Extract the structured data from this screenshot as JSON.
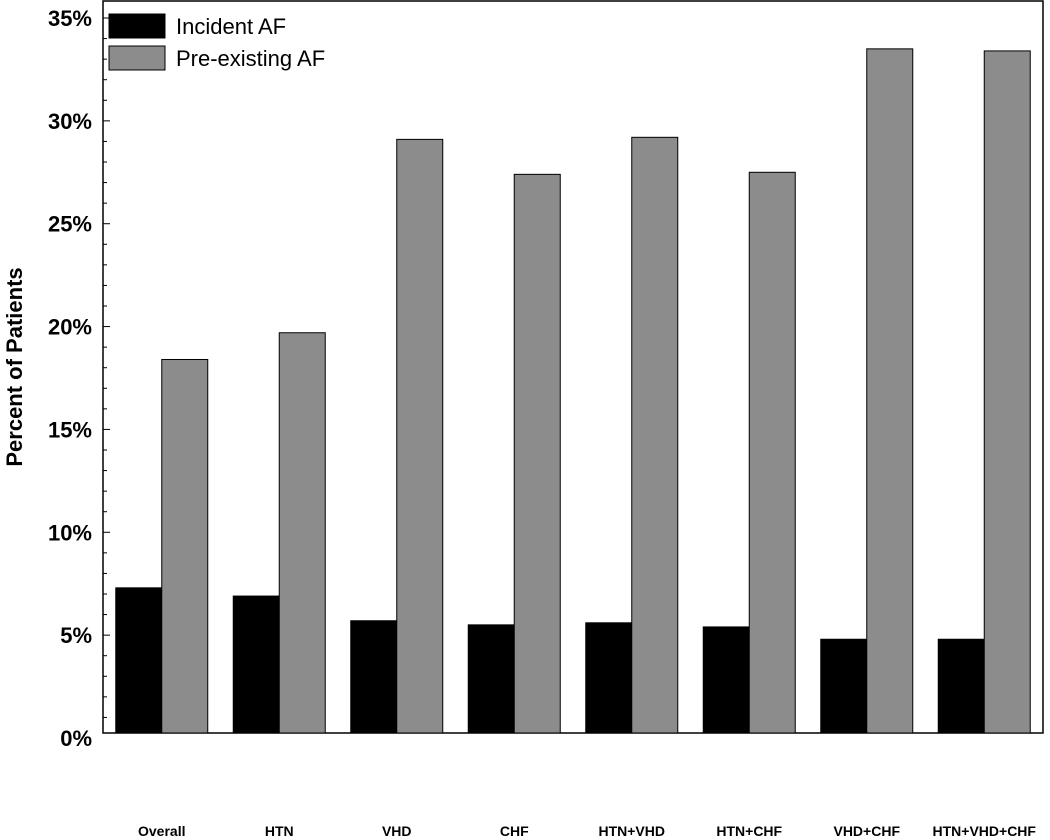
{
  "chart_data": {
    "type": "bar",
    "title": "",
    "xlabel": "",
    "ylabel": "Percent of Patients",
    "ylim": [
      0,
      35
    ],
    "y_ticks": [
      "0%",
      "5%",
      "10%",
      "15%",
      "20%",
      "25%",
      "30%",
      "35%"
    ],
    "y_tick_values": [
      0,
      5,
      10,
      15,
      20,
      25,
      30,
      35
    ],
    "categories": [
      "Overall",
      "HTN",
      "VHD",
      "CHF",
      "HTN+VHD",
      "HTN+CHF",
      "VHD+CHF",
      "HTN+VHD+CHF"
    ],
    "series": [
      {
        "name": "Incident AF",
        "color": "#000000",
        "values": [
          7.3,
          6.9,
          5.7,
          5.5,
          5.6,
          5.4,
          4.8,
          4.8
        ]
      },
      {
        "name": "Pre-existing AF",
        "color": "#8c8c8c",
        "values": [
          18.4,
          19.7,
          29.1,
          27.4,
          29.2,
          27.5,
          33.5,
          33.4
        ]
      }
    ],
    "legend_position": "top-left",
    "grid": false
  }
}
